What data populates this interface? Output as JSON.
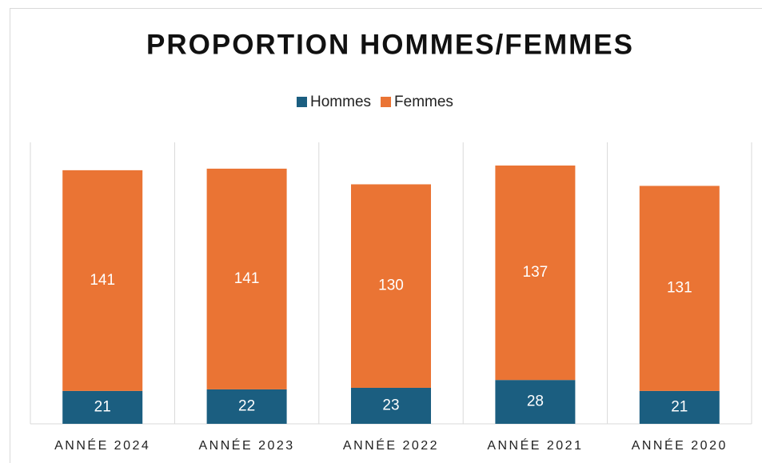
{
  "chart_data": {
    "type": "stacked_bar",
    "title": "PROPORTION HOMMES/FEMMES",
    "categories": [
      "ANNÉE 2024",
      "ANNÉE 2023",
      "ANNÉE 2022",
      "ANNÉE 2021",
      "ANNÉE 2020"
    ],
    "series": [
      {
        "name": "Hommes",
        "color": "#1b5e80",
        "values": [
          21,
          22,
          23,
          28,
          21
        ]
      },
      {
        "name": "Femmes",
        "color": "#ea7434",
        "values": [
          141,
          141,
          130,
          137,
          131
        ]
      }
    ],
    "grid": true,
    "legend": "top"
  }
}
